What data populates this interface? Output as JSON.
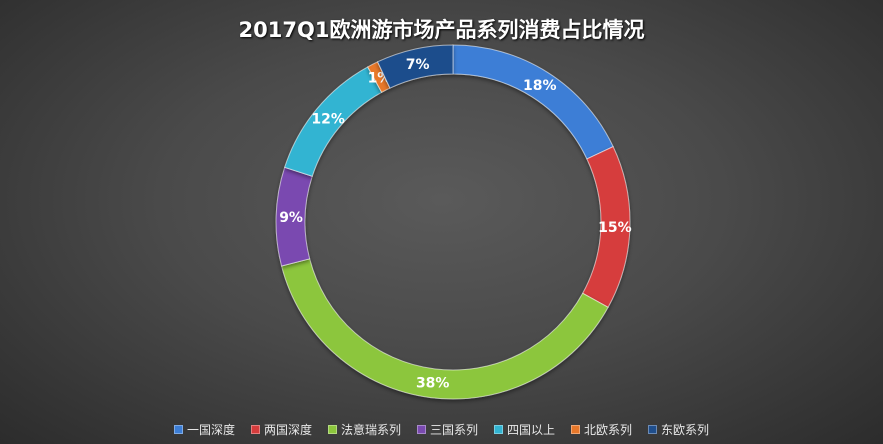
{
  "chart_data": {
    "type": "pie",
    "title": "2017Q1欧洲游市场产品系列消费占比情况",
    "categories": [
      "一国深度",
      "两国深度",
      "法意瑞系列",
      "三国系列",
      "四国以上",
      "北欧系列",
      "东欧系列"
    ],
    "values": [
      18,
      15,
      38,
      9,
      12,
      1,
      7
    ],
    "data_labels": [
      "18%",
      "15%",
      "38%",
      "9%",
      "12%",
      "1%",
      "7%"
    ],
    "colors": [
      "#3c7ed6",
      "#d63c3c",
      "#8cc63c",
      "#7a4ab0",
      "#32b4d2",
      "#e8782a",
      "#1f4e8c"
    ],
    "legend_position": "bottom",
    "donut": true
  }
}
